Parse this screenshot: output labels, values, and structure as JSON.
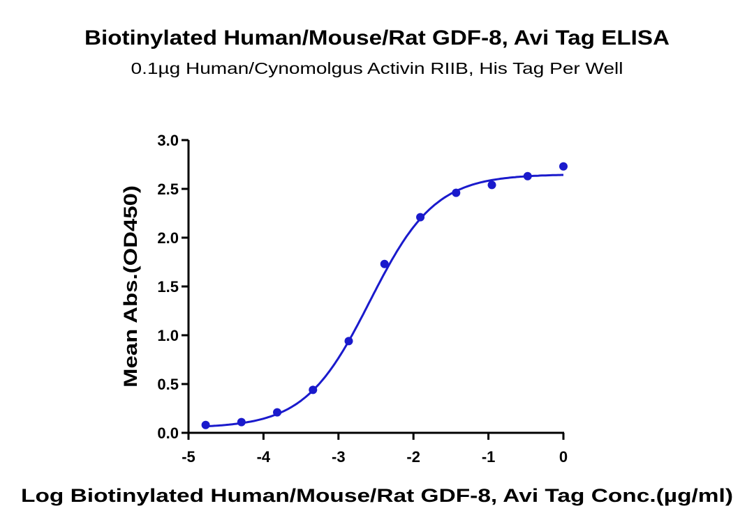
{
  "chart_data": {
    "type": "scatter",
    "title": "Biotinylated Human/Mouse/Rat GDF-8, Avi Tag ELISA",
    "subtitle": "0.1µg Human/Cynomolgus Activin RIIB, His Tag Per Well",
    "xlabel": "Log Biotinylated Human/Mouse/Rat GDF-8, Avi Tag Conc.(µg/ml)",
    "ylabel": "Mean Abs.(OD450)",
    "xlim": [
      -5,
      0
    ],
    "ylim": [
      0,
      3.0
    ],
    "xticks": [
      "-5",
      "-4",
      "-3",
      "-2",
      "-1",
      "0"
    ],
    "yticks": [
      "0.0",
      "0.5",
      "1.0",
      "1.5",
      "2.0",
      "2.5",
      "3.0"
    ],
    "grid": false,
    "color": "#1a1acc",
    "x": [
      -4.771,
      -4.294,
      -3.817,
      -3.34,
      -2.863,
      -2.386,
      -1.908,
      -1.431,
      -0.954,
      -0.477,
      0
    ],
    "y": [
      0.08,
      0.11,
      0.21,
      0.44,
      0.94,
      1.73,
      2.21,
      2.46,
      2.54,
      2.63,
      2.73
    ],
    "fit": {
      "type": "4PL",
      "bottom": 0.05,
      "top": 2.65,
      "logEC50": -2.58,
      "hill": 1.0
    }
  }
}
